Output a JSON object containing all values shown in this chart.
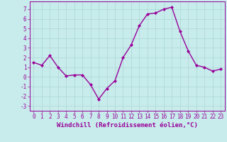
{
  "x": [
    0,
    1,
    2,
    3,
    4,
    5,
    6,
    7,
    8,
    9,
    10,
    11,
    12,
    13,
    14,
    15,
    16,
    17,
    18,
    19,
    20,
    21,
    22,
    23
  ],
  "y": [
    1.5,
    1.2,
    2.2,
    1.0,
    0.1,
    0.2,
    0.2,
    -0.8,
    -2.3,
    -1.2,
    -0.4,
    2.0,
    3.3,
    5.3,
    6.5,
    6.6,
    7.0,
    7.2,
    4.7,
    2.7,
    1.2,
    1.0,
    0.6,
    0.8
  ],
  "line_color": "#990099",
  "marker": "D",
  "marker_size": 2,
  "bg_color": "#c8ecec",
  "grid_color": "#b0d8d8",
  "xlabel": "Windchill (Refroidissement éolien,°C)",
  "ylim": [
    -3.5,
    7.8
  ],
  "xlim": [
    -0.5,
    23.5
  ],
  "yticks": [
    -3,
    -2,
    -1,
    0,
    1,
    2,
    3,
    4,
    5,
    6,
    7
  ],
  "xticks": [
    0,
    1,
    2,
    3,
    4,
    5,
    6,
    7,
    8,
    9,
    10,
    11,
    12,
    13,
    14,
    15,
    16,
    17,
    18,
    19,
    20,
    21,
    22,
    23
  ],
  "tick_fontsize": 5.5,
  "xlabel_fontsize": 6.5,
  "line_width": 1.0
}
